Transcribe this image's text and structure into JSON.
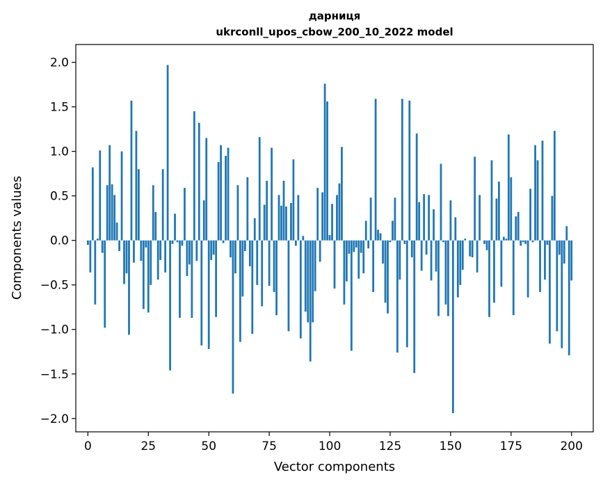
{
  "chart_data": {
    "type": "bar",
    "title": "дарниця",
    "subtitle": "ukrconll_upos_cbow_200_10_2022 model",
    "xlabel": "Vector components",
    "ylabel": "Components values",
    "xlim": [
      -5,
      209
    ],
    "ylim": [
      -2.15,
      2.2
    ],
    "xticks": [
      0,
      25,
      50,
      75,
      100,
      125,
      150,
      175,
      200
    ],
    "yticks": [
      -2.0,
      -1.5,
      -1.0,
      -0.5,
      0.0,
      0.5,
      1.0,
      1.5,
      2.0
    ],
    "xtick_labels": [
      "0",
      "25",
      "50",
      "75",
      "100",
      "125",
      "150",
      "175",
      "200"
    ],
    "ytick_labels": [
      "−2.0",
      "−1.5",
      "−1.0",
      "−0.5",
      "0.0",
      "0.5",
      "1.0",
      "1.5",
      "2.0"
    ],
    "grid": false,
    "bar_color": "#1f77b4",
    "values": [
      -0.05,
      -0.36,
      0.82,
      -0.72,
      0.02,
      1.01,
      -0.14,
      -0.98,
      0.62,
      1.07,
      0.63,
      0.51,
      0.2,
      -0.12,
      1.0,
      -0.49,
      -0.37,
      -1.06,
      1.57,
      -0.25,
      1.23,
      0.8,
      -0.23,
      -0.77,
      -0.08,
      -0.81,
      -0.5,
      0.62,
      0.32,
      -0.44,
      -0.22,
      0.8,
      -0.36,
      1.97,
      -1.46,
      -0.04,
      0.3,
      -0.02,
      -0.87,
      -0.06,
      0.59,
      -0.4,
      -0.27,
      -0.87,
      1.45,
      -0.23,
      1.32,
      -1.18,
      0.45,
      1.15,
      -1.22,
      -0.22,
      -0.16,
      -0.86,
      0.88,
      1.07,
      -0.03,
      0.95,
      1.04,
      -0.19,
      -1.72,
      -0.37,
      0.62,
      -1.14,
      -0.63,
      -0.12,
      0.71,
      -0.29,
      -1.05,
      0.25,
      -0.5,
      1.16,
      -0.74,
      0.4,
      0.67,
      -0.51,
      1.04,
      -0.58,
      -0.84,
      0.51,
      0.39,
      0.67,
      0.38,
      -1.02,
      0.42,
      0.91,
      -0.06,
      0.51,
      -1.1,
      0.05,
      -0.8,
      -0.92,
      -1.36,
      -0.92,
      -0.57,
      0.59,
      -0.24,
      0.54,
      1.76,
      1.56,
      0.06,
      0.41,
      -0.54,
      0.51,
      0.64,
      1.05,
      -0.72,
      -0.46,
      -0.15,
      -1.24,
      -0.13,
      -0.08,
      -0.43,
      -0.14,
      -0.37,
      0.22,
      -0.09,
      0.48,
      -0.58,
      1.59,
      0.12,
      0.08,
      -0.26,
      -0.7,
      -0.82,
      -0.02,
      0.22,
      0.48,
      -1.26,
      -0.44,
      1.59,
      -0.04,
      -1.2,
      1.57,
      -0.19,
      -1.49,
      1.2,
      0.43,
      -0.34,
      0.52,
      -0.16,
      0.51,
      -0.45,
      0.35,
      -0.35,
      -0.85,
      0.86,
      -0.02,
      -0.72,
      -0.85,
      0.45,
      -1.94,
      0.26,
      -0.64,
      -0.5,
      -0.33,
      0.02,
      0.0,
      -0.18,
      -0.19,
      0.94,
      -0.36,
      0.51,
      0.0,
      -0.04,
      -0.11,
      -0.86,
      0.9,
      -0.7,
      0.47,
      0.66,
      -0.52,
      0.04,
      0.02,
      1.19,
      0.71,
      -0.84,
      0.27,
      0.32,
      -0.06,
      -0.02,
      -0.04,
      -0.64,
      0.58,
      -0.02,
      1.07,
      0.9,
      -0.58,
      1.12,
      -0.44,
      -0.05,
      -1.16,
      0.5,
      1.23,
      -1.02,
      -0.16,
      -1.21,
      -0.26,
      0.16,
      -1.29,
      -0.45
    ]
  }
}
